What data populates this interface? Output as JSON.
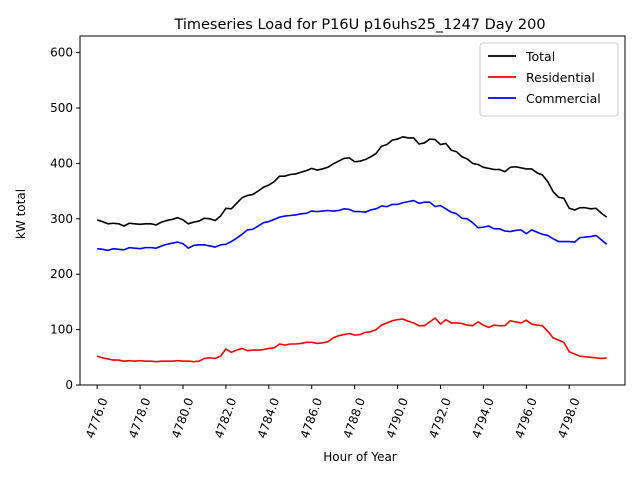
{
  "chart_data": {
    "type": "line",
    "title": "Timeseries Load for P16U p16uhs25_1247  Day 200",
    "xlabel": "Hour of Year",
    "ylabel": "kW total",
    "xlim": [
      4775.2,
      4800.6
    ],
    "ylim": [
      0,
      630
    ],
    "x_ticks": [
      4776,
      4778,
      4780,
      4782,
      4784,
      4786,
      4788,
      4790,
      4792,
      4794,
      4796,
      4798
    ],
    "x_tick_labels": [
      "4776.0",
      "4778.0",
      "4780.0",
      "4782.0",
      "4784.0",
      "4786.0",
      "4788.0",
      "4790.0",
      "4792.0",
      "4794.0",
      "4796.0",
      "4798.0"
    ],
    "y_ticks": [
      0,
      100,
      200,
      300,
      400,
      500,
      600
    ],
    "y_tick_labels": [
      "0",
      "100",
      "200",
      "300",
      "400",
      "500",
      "600"
    ],
    "x_start": 4776,
    "x_step": 0.25,
    "legend_position": "top-right",
    "series": [
      {
        "name": "Total",
        "color": "#000000",
        "values": [
          298,
          295,
          291,
          292,
          291,
          287,
          292,
          291,
          290,
          291,
          291,
          289,
          294,
          297,
          299,
          302,
          298,
          291,
          294,
          296,
          301,
          300,
          297,
          305,
          319,
          318,
          328,
          338,
          342,
          344,
          350,
          357,
          361,
          367,
          377,
          377,
          380,
          381,
          384,
          387,
          391,
          388,
          390,
          393,
          399,
          404,
          409,
          410,
          403,
          404,
          407,
          412,
          418,
          431,
          434,
          442,
          444,
          448,
          446,
          446,
          435,
          437,
          444,
          443,
          434,
          436,
          424,
          421,
          412,
          408,
          400,
          398,
          393,
          391,
          389,
          389,
          385,
          393,
          394,
          392,
          390,
          390,
          383,
          379,
          367,
          349,
          339,
          337,
          319,
          316,
          320,
          320,
          318,
          319,
          310,
          303
        ]
      },
      {
        "name": "Residential",
        "color": "#ff0000",
        "values": [
          52,
          49,
          47,
          45,
          45,
          43,
          44,
          43,
          44,
          43,
          43,
          42,
          43,
          43,
          43,
          44,
          43,
          43,
          42,
          43,
          48,
          49,
          48,
          52,
          65,
          59,
          63,
          66,
          62,
          63,
          63,
          64,
          66,
          67,
          74,
          72,
          74,
          74,
          75,
          77,
          77,
          75,
          76,
          78,
          85,
          89,
          91,
          93,
          90,
          91,
          95,
          96,
          100,
          108,
          112,
          116,
          118,
          119,
          115,
          112,
          107,
          107,
          114,
          121,
          110,
          118,
          112,
          112,
          111,
          108,
          107,
          114,
          108,
          104,
          108,
          107,
          107,
          116,
          114,
          112,
          117,
          110,
          108,
          107,
          97,
          85,
          81,
          77,
          60,
          56,
          52,
          51,
          50,
          49,
          48,
          49
        ]
      },
      {
        "name": "Commercial",
        "color": "#0000ff",
        "values": [
          246,
          245,
          243,
          246,
          245,
          244,
          248,
          247,
          246,
          248,
          248,
          247,
          251,
          254,
          256,
          258,
          255,
          247,
          252,
          253,
          253,
          251,
          249,
          253,
          254,
          259,
          265,
          272,
          280,
          281,
          287,
          293,
          295,
          299,
          303,
          305,
          306,
          307,
          309,
          310,
          314,
          313,
          314,
          315,
          314,
          315,
          318,
          317,
          313,
          313,
          312,
          316,
          318,
          323,
          322,
          326,
          326,
          329,
          331,
          333,
          328,
          330,
          330,
          322,
          324,
          318,
          312,
          309,
          301,
          300,
          293,
          284,
          285,
          287,
          282,
          282,
          278,
          277,
          279,
          280,
          273,
          280,
          276,
          272,
          270,
          264,
          259,
          259,
          259,
          258,
          266,
          267,
          268,
          270,
          262,
          254
        ]
      }
    ]
  }
}
